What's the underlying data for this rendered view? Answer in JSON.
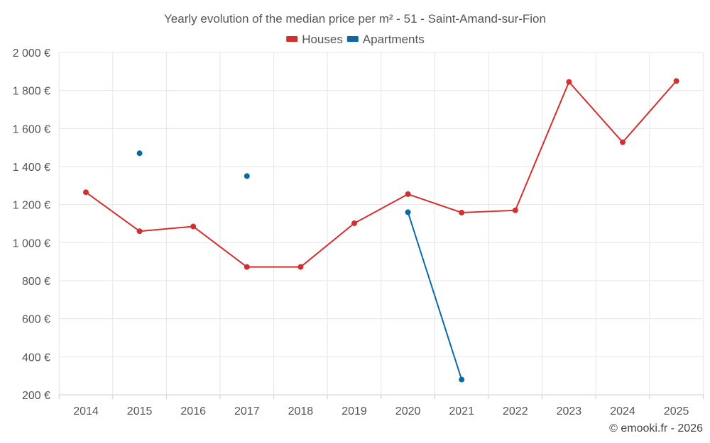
{
  "chart_data": {
    "type": "line",
    "title": "Yearly evolution of the median price per m² - 51 - Saint-Amand-sur-Fion",
    "categories": [
      "2014",
      "2015",
      "2016",
      "2017",
      "2018",
      "2019",
      "2020",
      "2021",
      "2022",
      "2023",
      "2024",
      "2025"
    ],
    "series": [
      {
        "name": "Houses",
        "color": "#d32f2f",
        "values": [
          1265,
          1060,
          1085,
          872,
          872,
          1102,
          1255,
          1158,
          1170,
          1845,
          1528,
          1850
        ]
      },
      {
        "name": "Apartments",
        "color": "#0a6aa1",
        "values": [
          null,
          1470,
          null,
          1350,
          null,
          null,
          1160,
          280,
          null,
          null,
          null,
          null
        ]
      }
    ],
    "ylim": [
      200,
      2000
    ],
    "yticks": [
      200,
      400,
      600,
      800,
      1000,
      1200,
      1400,
      1600,
      1800,
      2000
    ],
    "ytick_labels": [
      "200 €",
      "400 €",
      "600 €",
      "800 €",
      "1 000 €",
      "1 200 €",
      "1 400 €",
      "1 600 €",
      "1 800 €",
      "2 000 €"
    ],
    "xlabel": "",
    "ylabel": "",
    "grid": true,
    "legend_position": "top-center"
  },
  "credit": "© emooki.fr - 2026"
}
